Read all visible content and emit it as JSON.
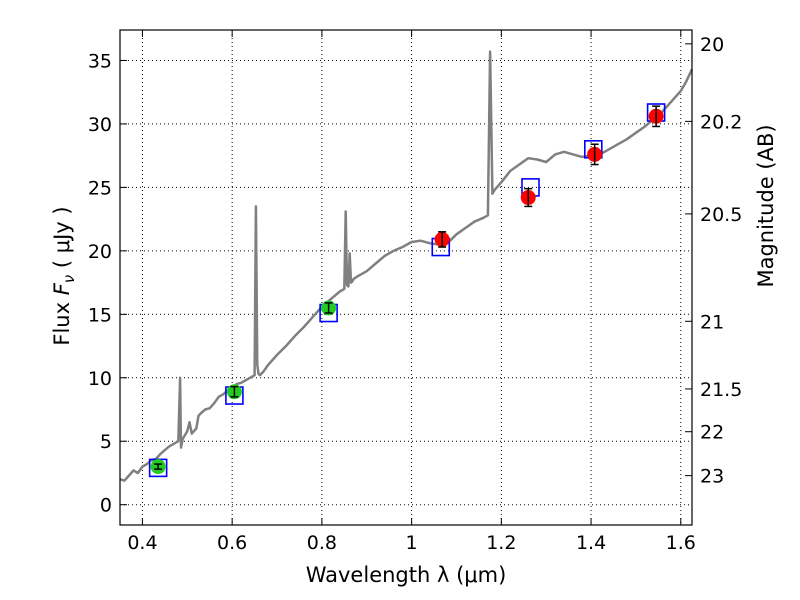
{
  "chart_data": {
    "type": "scatter",
    "xlabel": "Wavelength  λ (μm)",
    "ylabel_prefix": "Flux  ",
    "ylabel_var": "F",
    "ylabel_sub": "ν",
    "ylabel_suffix": "  ( μJy )",
    "y2label": "Magnitude (AB)",
    "xlim": [
      0.35,
      1.625
    ],
    "ylim": [
      -1.6,
      37.4
    ],
    "grid": true,
    "x_ticks": [
      {
        "value": 0.4,
        "label": "0.4"
      },
      {
        "value": 0.6,
        "label": "0.6"
      },
      {
        "value": 0.8,
        "label": "0.8"
      },
      {
        "value": 1.0,
        "label": "1"
      },
      {
        "value": 1.2,
        "label": "1.2"
      },
      {
        "value": 1.4,
        "label": "1.4"
      },
      {
        "value": 1.6,
        "label": "1.6"
      }
    ],
    "y_ticks": [
      {
        "value": 0,
        "label": "0"
      },
      {
        "value": 5,
        "label": "5"
      },
      {
        "value": 10,
        "label": "10"
      },
      {
        "value": 15,
        "label": "15"
      },
      {
        "value": 20,
        "label": "20"
      },
      {
        "value": 25,
        "label": "25"
      },
      {
        "value": 30,
        "label": "30"
      },
      {
        "value": 35,
        "label": "35"
      }
    ],
    "y2_ticks": [
      {
        "label": "20",
        "flux": 36.31
      },
      {
        "label": "20.2",
        "flux": 30.2
      },
      {
        "label": "20.5",
        "flux": 22.91
      },
      {
        "label": "21",
        "flux": 14.45
      },
      {
        "label": "21.5",
        "flux": 9.12
      },
      {
        "label": "22",
        "flux": 5.75
      },
      {
        "label": "23",
        "flux": 2.29
      }
    ],
    "series": [
      {
        "kind": "line",
        "color": "#808080",
        "x": [
          0.35,
          0.36,
          0.37,
          0.38,
          0.39,
          0.4,
          0.41,
          0.42,
          0.43,
          0.44,
          0.45,
          0.46,
          0.47,
          0.48,
          0.484,
          0.486,
          0.49,
          0.5,
          0.505,
          0.51,
          0.52,
          0.525,
          0.53,
          0.54,
          0.55,
          0.56,
          0.57,
          0.58,
          0.59,
          0.6,
          0.61,
          0.62,
          0.63,
          0.64,
          0.65,
          0.653,
          0.656,
          0.659,
          0.662,
          0.67,
          0.68,
          0.69,
          0.7,
          0.72,
          0.74,
          0.76,
          0.78,
          0.8,
          0.82,
          0.84,
          0.85,
          0.853,
          0.856,
          0.859,
          0.862,
          0.865,
          0.868,
          0.871,
          0.88,
          0.9,
          0.92,
          0.94,
          0.96,
          0.98,
          1.0,
          1.02,
          1.04,
          1.06,
          1.08,
          1.1,
          1.12,
          1.14,
          1.16,
          1.17,
          1.175,
          1.18,
          1.185,
          1.19,
          1.2,
          1.22,
          1.24,
          1.26,
          1.28,
          1.3,
          1.32,
          1.34,
          1.36,
          1.38,
          1.4,
          1.42,
          1.44,
          1.46,
          1.48,
          1.5,
          1.52,
          1.54,
          1.56,
          1.58,
          1.6,
          1.61,
          1.625
        ],
        "y": [
          2.0,
          1.9,
          2.3,
          2.7,
          2.5,
          3.0,
          3.2,
          3.5,
          3.6,
          4.0,
          4.3,
          4.6,
          4.8,
          5.0,
          10.0,
          4.5,
          5.2,
          5.8,
          6.5,
          5.6,
          6.0,
          7.0,
          7.2,
          7.5,
          7.6,
          8.0,
          8.5,
          8.7,
          9.0,
          9.2,
          9.5,
          9.6,
          9.8,
          10.0,
          10.2,
          23.5,
          11.0,
          10.3,
          10.2,
          10.5,
          11.0,
          11.4,
          11.8,
          12.5,
          13.3,
          14.0,
          14.8,
          15.6,
          16.2,
          16.8,
          17.0,
          23.1,
          17.3,
          17.2,
          19.8,
          17.5,
          17.6,
          17.8,
          18.0,
          18.4,
          19.0,
          19.6,
          20.0,
          20.3,
          20.7,
          20.8,
          20.6,
          20.5,
          20.6,
          21.3,
          21.8,
          22.3,
          22.6,
          22.8,
          35.7,
          24.5,
          24.8,
          25.0,
          25.4,
          26.3,
          26.8,
          27.3,
          27.2,
          27.0,
          27.6,
          27.8,
          27.6,
          27.4,
          27.5,
          27.6,
          28.0,
          28.4,
          28.8,
          29.3,
          29.8,
          30.4,
          31.0,
          31.8,
          32.6,
          33.2,
          34.3
        ]
      },
      {
        "kind": "open_squares",
        "color": "#0000ff",
        "x": [
          0.435,
          0.605,
          0.815,
          1.065,
          1.265,
          1.405,
          1.545
        ],
        "y": [
          2.9,
          8.6,
          15.1,
          20.3,
          25.0,
          28.0,
          30.9
        ]
      },
      {
        "kind": "points",
        "color": "#22cc22",
        "x": [
          0.435,
          0.605,
          0.815
        ],
        "y": [
          3.0,
          8.9,
          15.5
        ],
        "yerr": [
          0.2,
          0.4,
          0.4
        ]
      },
      {
        "kind": "points",
        "color": "#ff0000",
        "x": [
          1.068,
          1.26,
          1.408,
          1.545
        ],
        "y": [
          20.9,
          24.2,
          27.6,
          30.6
        ],
        "yerr": [
          0.6,
          0.7,
          0.8,
          0.8
        ]
      }
    ]
  }
}
